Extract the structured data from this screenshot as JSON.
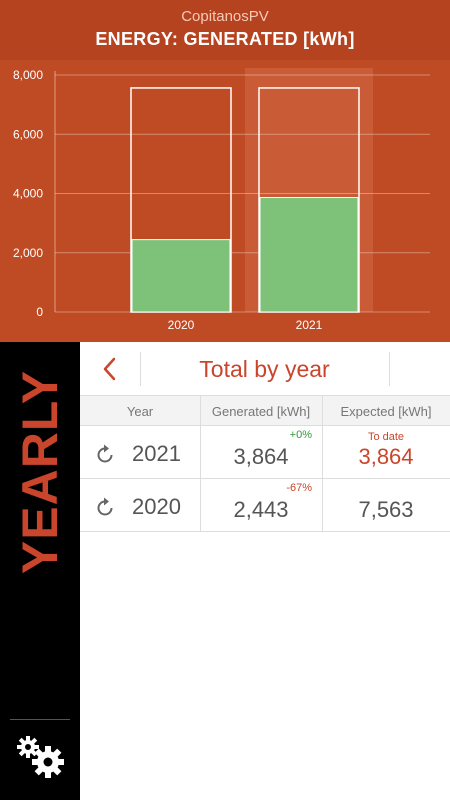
{
  "header": {
    "app_name": "CopitanosPV",
    "title": "ENERGY: GENERATED [kWh]"
  },
  "chart_data": {
    "type": "bar",
    "categories": [
      "2020",
      "2021"
    ],
    "series": [
      {
        "values": [
          2443,
          3864
        ]
      },
      {
        "values": [
          7563,
          7563
        ]
      }
    ],
    "yticks": [
      "0",
      "2,000",
      "4,000",
      "6,000",
      "8,000"
    ],
    "ylim": [
      0,
      8000
    ],
    "grid": true,
    "colors": {
      "generated": "#7dc278",
      "expected_outline": "#ffffff",
      "highlight": "#e07a5a"
    }
  },
  "sidebar": {
    "label": "YEARLY",
    "settings_icon": "gears-icon"
  },
  "topbar": {
    "title": "Total by year",
    "back_icon": "chevron-left-icon"
  },
  "table": {
    "headers": [
      "Year",
      "Generated [kWh]",
      "Expected [kWh]"
    ],
    "rows": [
      {
        "year": "2021",
        "change": "+0%",
        "generated": "3,864",
        "expected_label": "To date",
        "expected": "3,864"
      },
      {
        "year": "2020",
        "change": "-67%",
        "generated": "2,443",
        "expected_label": "",
        "expected": "7,563"
      }
    ]
  }
}
